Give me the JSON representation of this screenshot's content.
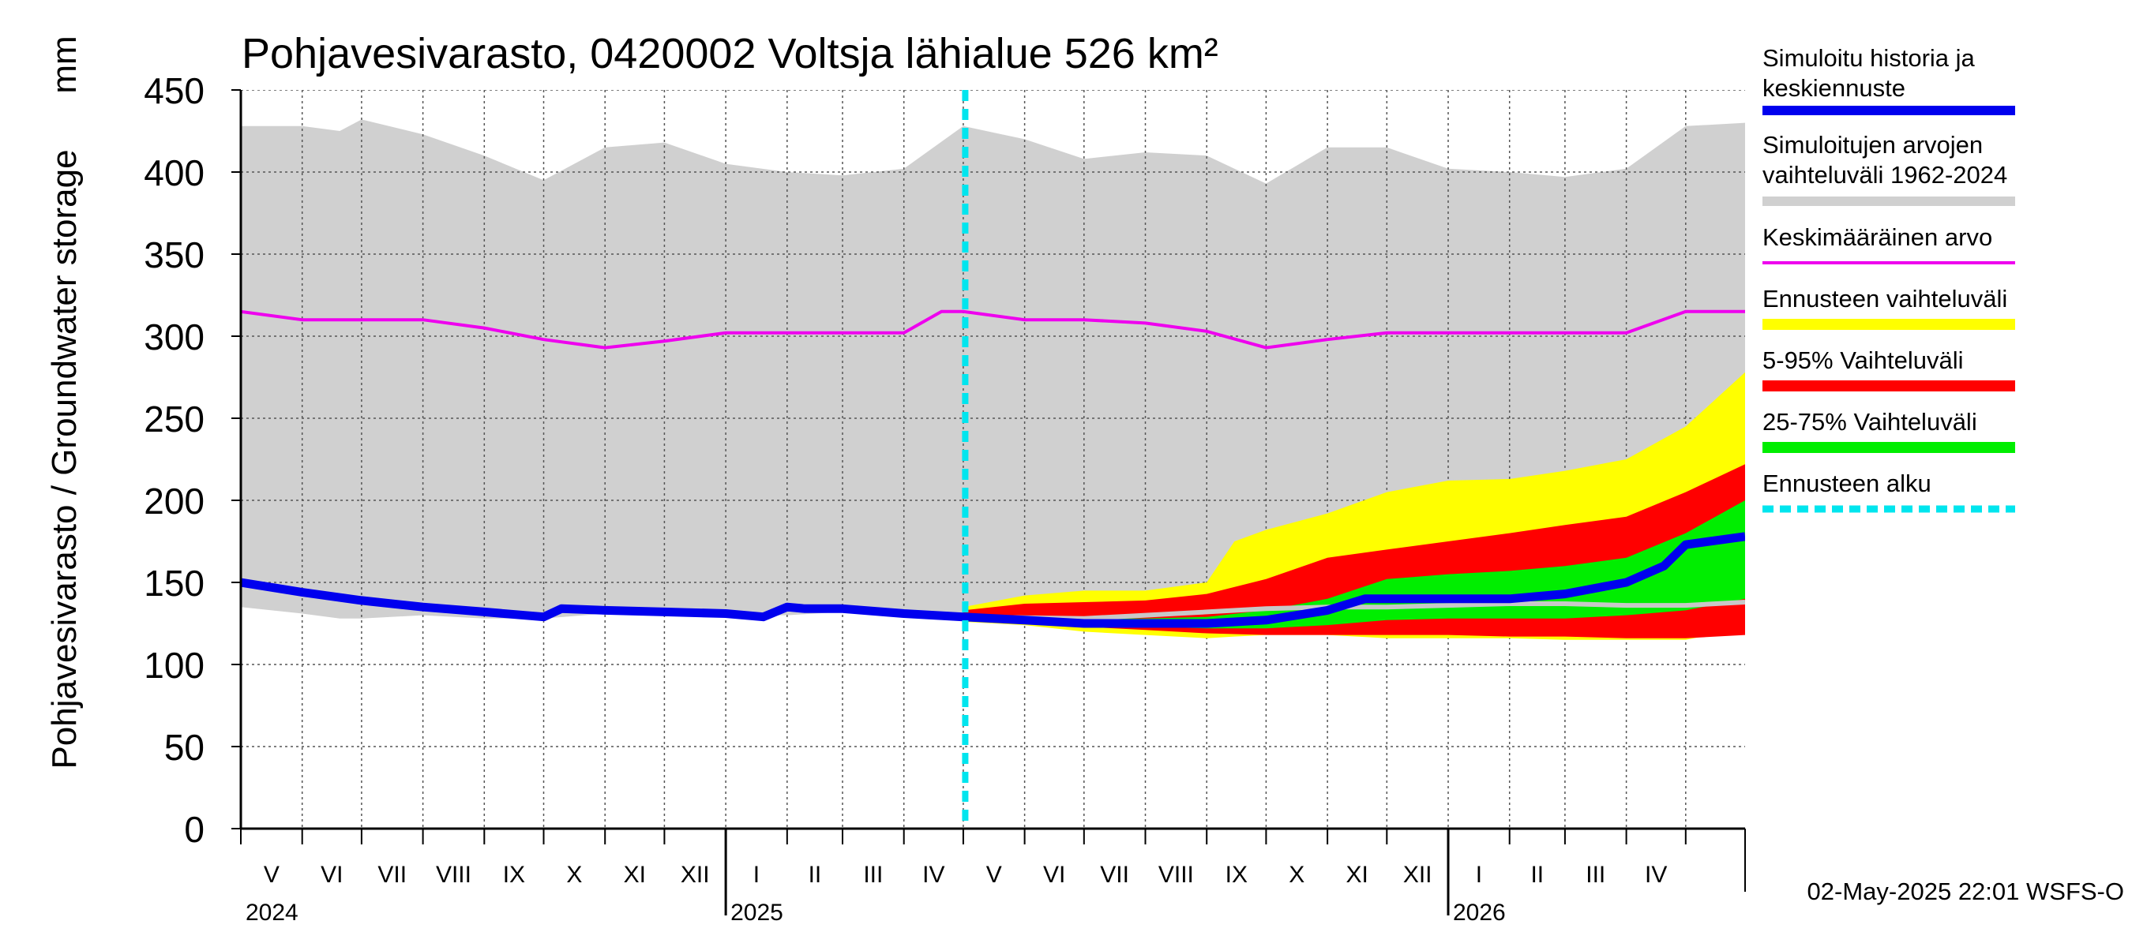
{
  "chart_data": {
    "type": "area",
    "title": "Pohjavesivarasto, 0420002 Voltsja lähialue 526 km²",
    "ylabel": "Pohjavesivarasto / Groundwater storage",
    "yunit": "mm",
    "ylim": [
      0,
      450
    ],
    "yticks": [
      0,
      50,
      100,
      150,
      200,
      250,
      300,
      350,
      400,
      450
    ],
    "xlim": [
      "2024-05-01",
      "2026-05-31"
    ],
    "months": [
      "V",
      "VI",
      "VII",
      "VIII",
      "IX",
      "X",
      "XI",
      "XII",
      "I",
      "II",
      "III",
      "IV",
      "V",
      "VI",
      "VII",
      "VIII",
      "IX",
      "X",
      "XI",
      "XII",
      "I",
      "II",
      "III",
      "IV"
    ],
    "years": [
      "2024",
      "2025",
      "2026"
    ],
    "grid": true,
    "forecast_start": "2025-05-02",
    "legend_position": "right",
    "legend": [
      {
        "label": "Simuloitu historia ja keskiennuste",
        "color": "#0000ee"
      },
      {
        "label": "Simuloitujen arvojen vaihteluväli 1962-2024",
        "color": "#d0d0d0"
      },
      {
        "label": "Keskimääräinen arvo",
        "color": "#ee00ee"
      },
      {
        "label": "Ennusteen vaihteluväli",
        "color": "#ffff00"
      },
      {
        "label": "5-95% Vaihteluväli",
        "color": "#ff0000"
      },
      {
        "label": "25-75% Vaihteluväli",
        "color": "#00ee00"
      },
      {
        "label": "Ennusteen alku",
        "color": "#00e5ee"
      }
    ],
    "series": [
      {
        "name": "Simuloitujen arvojen vaihteluväli 1962-2024",
        "x": [
          "2024-05-01",
          "2024-06-01",
          "2024-06-20",
          "2024-07-01",
          "2024-08-01",
          "2024-09-01",
          "2024-10-01",
          "2024-11-01",
          "2024-12-01",
          "2025-01-01",
          "2025-02-01",
          "2025-03-01",
          "2025-04-01",
          "2025-05-01",
          "2025-06-01",
          "2025-07-01",
          "2025-08-01",
          "2025-09-01",
          "2025-10-01",
          "2025-11-01",
          "2025-12-01",
          "2026-01-01",
          "2026-02-01",
          "2026-03-01",
          "2026-04-01",
          "2026-05-01",
          "2026-05-31"
        ],
        "high": [
          428,
          428,
          425,
          432,
          423,
          410,
          395,
          415,
          418,
          405,
          400,
          398,
          402,
          428,
          420,
          408,
          412,
          410,
          393,
          415,
          415,
          402,
          400,
          397,
          402,
          428,
          430
        ],
        "low": [
          135,
          131,
          128,
          128,
          130,
          128,
          128,
          131,
          131,
          130,
          130,
          132,
          132,
          130,
          128,
          128,
          132,
          130,
          125,
          130,
          130,
          128,
          128,
          130,
          132,
          130,
          130
        ]
      },
      {
        "name": "Keskimääräinen arvo",
        "x": [
          "2024-05-01",
          "2024-06-01",
          "2024-07-01",
          "2024-08-01",
          "2024-09-01",
          "2024-10-01",
          "2024-11-01",
          "2024-12-01",
          "2025-01-01",
          "2025-02-01",
          "2025-03-01",
          "2025-04-01",
          "2025-04-20",
          "2025-05-01",
          "2025-06-01",
          "2025-07-01",
          "2025-08-01",
          "2025-09-01",
          "2025-10-01",
          "2025-11-01",
          "2025-12-01",
          "2026-01-01",
          "2026-02-01",
          "2026-03-01",
          "2026-04-01",
          "2026-05-01",
          "2026-05-31"
        ],
        "values": [
          315,
          310,
          310,
          310,
          305,
          298,
          293,
          297,
          302,
          302,
          302,
          302,
          315,
          315,
          310,
          310,
          308,
          303,
          293,
          298,
          302,
          302,
          302,
          302,
          302,
          315,
          315
        ]
      },
      {
        "name": "Simuloitu historia ja keskiennuste",
        "x": [
          "2024-05-01",
          "2024-06-01",
          "2024-07-01",
          "2024-08-01",
          "2024-09-01",
          "2024-10-01",
          "2024-10-10",
          "2024-11-01",
          "2024-12-01",
          "2025-01-01",
          "2025-01-20",
          "2025-02-01",
          "2025-02-10",
          "2025-03-01",
          "2025-04-01",
          "2025-05-01",
          "2025-06-01",
          "2025-07-01",
          "2025-08-01",
          "2025-09-01",
          "2025-10-01",
          "2025-11-01",
          "2025-11-20",
          "2025-12-01",
          "2026-01-01",
          "2026-02-01",
          "2026-03-01",
          "2026-04-01",
          "2026-04-20",
          "2026-05-01",
          "2026-05-31"
        ],
        "values": [
          150,
          144,
          139,
          135,
          132,
          129,
          134,
          133,
          132,
          131,
          129,
          135,
          134,
          134,
          131,
          129,
          127,
          125,
          125,
          125,
          127,
          133,
          140,
          140,
          140,
          140,
          143,
          150,
          160,
          173,
          178
        ]
      },
      {
        "name": "Ennusteen vaihteluväli",
        "x": [
          "2025-05-01",
          "2025-06-01",
          "2025-07-01",
          "2025-08-01",
          "2025-09-01",
          "2025-09-15",
          "2025-10-01",
          "2025-11-01",
          "2025-12-01",
          "2026-01-01",
          "2026-02-01",
          "2026-03-01",
          "2026-04-01",
          "2026-05-01",
          "2026-05-31"
        ],
        "high": [
          135,
          142,
          145,
          145,
          150,
          175,
          182,
          192,
          205,
          212,
          213,
          218,
          225,
          245,
          278
        ],
        "low": [
          126,
          124,
          120,
          118,
          116,
          117,
          118,
          118,
          116,
          116,
          116,
          115,
          115,
          115,
          122
        ]
      },
      {
        "name": "5-95% Vaihteluväli",
        "x": [
          "2025-05-01",
          "2025-06-01",
          "2025-07-01",
          "2025-08-01",
          "2025-09-01",
          "2025-10-01",
          "2025-11-01",
          "2025-12-01",
          "2026-01-01",
          "2026-02-01",
          "2026-03-01",
          "2026-04-01",
          "2026-05-01",
          "2026-05-31"
        ],
        "high": [
          133,
          137,
          138,
          139,
          143,
          152,
          165,
          170,
          175,
          180,
          185,
          190,
          205,
          222
        ],
        "low": [
          128,
          125,
          123,
          121,
          119,
          118,
          118,
          118,
          118,
          117,
          117,
          116,
          116,
          118
        ]
      },
      {
        "name": "25-75% Vaihteluväli",
        "x": [
          "2025-05-01",
          "2025-06-01",
          "2025-07-01",
          "2025-08-01",
          "2025-09-01",
          "2025-10-01",
          "2025-11-01",
          "2025-12-01",
          "2026-01-01",
          "2026-02-01",
          "2026-03-01",
          "2026-04-01",
          "2026-05-01",
          "2026-05-31"
        ],
        "high": [
          130,
          129,
          128,
          128,
          129,
          133,
          140,
          152,
          155,
          157,
          160,
          165,
          180,
          200
        ],
        "low": [
          128,
          126,
          124,
          123,
          122,
          122,
          124,
          127,
          128,
          128,
          128,
          130,
          133,
          140
        ]
      },
      {
        "name": "Ennusteen mediaani",
        "x": [
          "2025-05-01",
          "2025-07-01",
          "2025-09-01",
          "2025-10-01",
          "2025-11-01",
          "2025-12-01",
          "2026-01-01",
          "2026-02-01",
          "2026-03-01",
          "2026-04-01",
          "2026-05-01",
          "2026-05-31"
        ],
        "values": [
          129,
          128,
          132,
          134,
          135,
          135,
          136,
          137,
          137,
          136,
          136,
          138
        ]
      }
    ]
  },
  "timestamp": "02-May-2025 22:01 WSFS-O"
}
